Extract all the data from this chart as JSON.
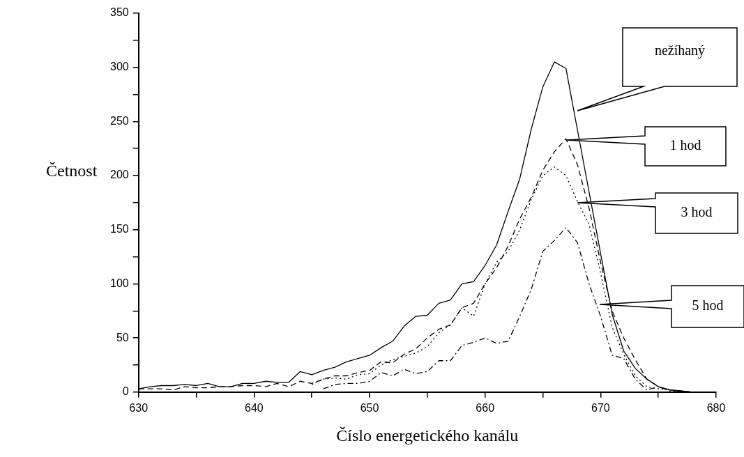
{
  "chart_data": {
    "type": "line",
    "xlabel": "Číslo energetického kanálu",
    "ylabel": "Četnost",
    "xlim": [
      630,
      680
    ],
    "xticks": [
      630,
      {
        "value": 635,
        "label": null
      },
      640,
      {
        "value": 645,
        "label": null
      },
      650,
      {
        "value": 655,
        "label": null
      },
      660,
      {
        "value": 665,
        "label": null
      },
      670,
      {
        "value": 675,
        "label": null
      },
      680
    ],
    "ylim": [
      0,
      350
    ],
    "yticks": [
      0,
      {
        "value": 25,
        "label": null
      },
      50,
      {
        "value": 75,
        "label": null
      },
      100,
      {
        "value": 125,
        "label": null
      },
      150,
      {
        "value": 175,
        "label": null
      },
      200,
      {
        "value": 225,
        "label": null
      },
      250,
      {
        "value": 275,
        "label": null
      },
      300,
      {
        "value": 325,
        "label": null
      },
      350
    ],
    "grid": false,
    "legend": false,
    "marker": "none",
    "series": [
      {
        "color": "#000000",
        "line_style": "solid",
        "x": [
          630,
          631,
          632,
          633,
          634,
          635,
          636,
          637,
          638,
          639,
          640,
          641,
          642,
          643,
          644,
          645,
          646,
          647,
          648,
          649,
          650,
          651,
          652,
          653,
          654,
          655,
          656,
          657,
          658,
          659,
          660,
          661,
          662,
          663,
          664,
          665,
          666,
          667,
          668,
          669,
          670,
          671,
          672,
          673,
          674,
          675,
          676,
          677,
          678
        ],
        "values": [
          3,
          5,
          6,
          6,
          7,
          6,
          8,
          5,
          5,
          8,
          8,
          10,
          9,
          9,
          19,
          16,
          20,
          23,
          28,
          31,
          34,
          41,
          47,
          61,
          70,
          71,
          82,
          85,
          100,
          102,
          117,
          136,
          167,
          197,
          243,
          282,
          305,
          299,
          242,
          185,
          128,
          72,
          38,
          22,
          12,
          5,
          2,
          1,
          0
        ]
      },
      {
        "color": "#000000",
        "line_style": "dashed",
        "x": [
          630,
          631,
          632,
          633,
          634,
          635,
          636,
          637,
          638,
          639,
          640,
          641,
          642,
          643,
          644,
          645,
          646,
          647,
          648,
          649,
          650,
          651,
          652,
          653,
          654,
          655,
          656,
          657,
          658,
          659,
          660,
          661,
          662,
          663,
          664,
          665,
          666,
          667,
          668,
          669,
          670,
          671,
          672,
          673,
          674,
          675,
          676,
          677,
          678
        ],
        "values": [
          3,
          3,
          3,
          2,
          5,
          4,
          4,
          5,
          5,
          6,
          6,
          5,
          8,
          5,
          10,
          8,
          12,
          15,
          15,
          18,
          20,
          28,
          27,
          35,
          40,
          50,
          58,
          62,
          78,
          82,
          100,
          115,
          135,
          160,
          180,
          205,
          222,
          234,
          210,
          170,
          120,
          75,
          50,
          30,
          12,
          5,
          2,
          1,
          0
        ]
      },
      {
        "color": "#000000",
        "line_style": "dotted",
        "x": [
          645,
          646,
          647,
          648,
          649,
          650,
          651,
          652,
          653,
          654,
          655,
          656,
          657,
          658,
          659,
          660,
          661,
          662,
          663,
          664,
          665,
          666,
          667,
          668,
          669,
          670,
          671,
          672,
          673,
          674,
          675,
          676,
          677
        ],
        "values": [
          7,
          12,
          13,
          12,
          16,
          17,
          25,
          30,
          33,
          36,
          42,
          55,
          62,
          78,
          70,
          100,
          120,
          130,
          150,
          178,
          200,
          208,
          200,
          176,
          155,
          110,
          60,
          35,
          15,
          5,
          3,
          2,
          1
        ]
      },
      {
        "color": "#000000",
        "line_style": "dashdot",
        "x": [
          646,
          647,
          648,
          649,
          650,
          651,
          652,
          653,
          654,
          655,
          656,
          657,
          658,
          659,
          660,
          661,
          662,
          663,
          664,
          665,
          666,
          667,
          668,
          669,
          670,
          671,
          672,
          673,
          674,
          675,
          676,
          677
        ],
        "values": [
          3,
          7,
          8,
          8,
          10,
          18,
          15,
          21,
          17,
          19,
          29,
          29,
          43,
          46,
          50,
          45,
          47,
          70,
          95,
          130,
          140,
          152,
          138,
          100,
          70,
          34,
          31,
          12,
          2,
          5,
          1,
          0
        ]
      }
    ],
    "annotations": [
      "nežíhaný",
      "1 hod",
      "3 hod",
      "5 hod"
    ]
  }
}
